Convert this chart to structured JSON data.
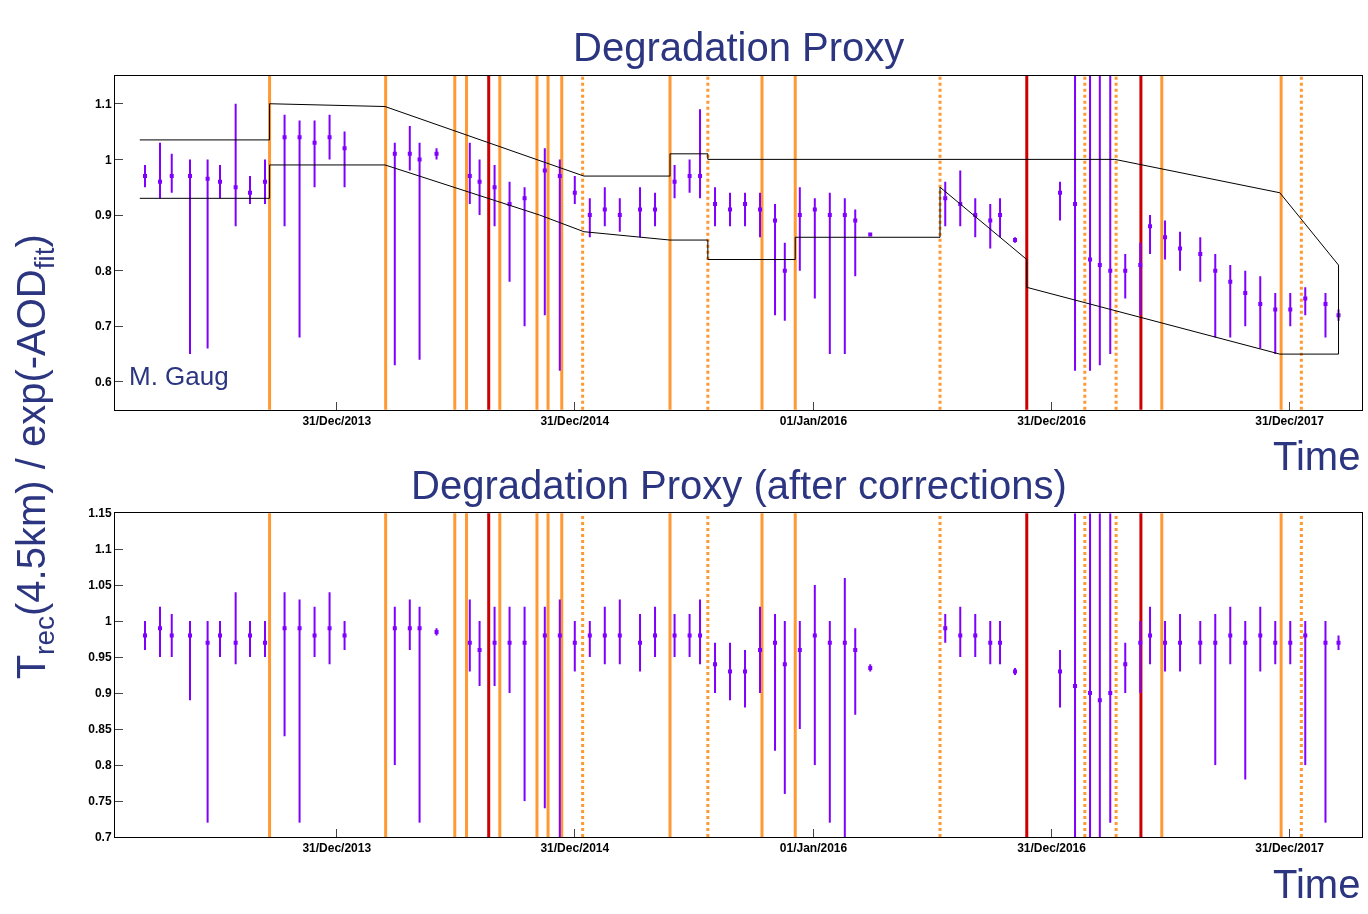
{
  "chart_data": [
    {
      "type": "scatter",
      "title": "Degradation Proxy",
      "xlabel": "Time",
      "ylabel": "T$_{rec}$(4.5km) / exp(-AOD$_{fit}$)",
      "annotations": [
        "M. Gaug"
      ],
      "grid": false,
      "marker": "square",
      "xlim": [
        "2013-01-25",
        "2018-04-21"
      ],
      "xticks": [
        {
          "value": "2013-12-31",
          "label": "31/Dec/2013"
        },
        {
          "value": "2014-12-31",
          "label": "31/Dec/2014"
        },
        {
          "value": "2016-01-01",
          "label": "01/Jan/2016"
        },
        {
          "value": "2016-12-31",
          "label": "31/Dec/2016"
        },
        {
          "value": "2017-12-31",
          "label": "31/Dec/2017"
        }
      ],
      "ylim": [
        0.55,
        1.15
      ],
      "yticks": [
        0.6,
        0.7,
        0.8,
        0.9,
        1,
        1.1
      ],
      "series": [
        {
          "color": "#7f00ff",
          "x": [
            "2013-03-12",
            "2013-04-04",
            "2013-04-22",
            "2013-05-20",
            "2013-06-16",
            "2013-07-05",
            "2013-07-29",
            "2013-08-20",
            "2013-09-12",
            "2013-10-12",
            "2013-11-04",
            "2013-11-27",
            "2013-12-20",
            "2014-01-12",
            "2014-03-30",
            "2014-04-22",
            "2014-05-07",
            "2014-06-02",
            "2014-07-23",
            "2014-08-07",
            "2014-08-30",
            "2014-09-22",
            "2014-10-15",
            "2014-11-15",
            "2014-12-08",
            "2014-12-31",
            "2015-01-23",
            "2015-02-15",
            "2015-03-10",
            "2015-04-10",
            "2015-05-03",
            "2015-06-02",
            "2015-06-25",
            "2015-07-11",
            "2015-08-03",
            "2015-08-26",
            "2015-09-18",
            "2015-10-11",
            "2015-11-03",
            "2015-11-18",
            "2015-12-11",
            "2016-01-03",
            "2016-01-26",
            "2016-02-18",
            "2016-03-05",
            "2016-03-28",
            "2016-07-21",
            "2016-08-13",
            "2016-09-05",
            "2016-09-28",
            "2016-10-13",
            "2016-11-05",
            "2017-01-13",
            "2017-02-05",
            "2017-02-28",
            "2017-03-15",
            "2017-03-31",
            "2017-04-23",
            "2017-05-16",
            "2017-05-31",
            "2017-06-23",
            "2017-07-16",
            "2017-08-16",
            "2017-09-08",
            "2017-10-01",
            "2017-10-24",
            "2017-11-16",
            "2017-12-09",
            "2018-01-01",
            "2018-01-24",
            "2018-02-24",
            "2018-03-16"
          ],
          "values": [
            0.97,
            0.96,
            0.97,
            0.97,
            0.965,
            0.96,
            0.95,
            0.94,
            0.96,
            1.04,
            1.04,
            1.03,
            1.04,
            1.02,
            1.01,
            1.01,
            1.0,
            1.01,
            0.97,
            0.96,
            0.95,
            0.92,
            0.93,
            0.98,
            0.97,
            0.94,
            0.9,
            0.91,
            0.9,
            0.91,
            0.91,
            0.96,
            0.97,
            0.97,
            0.92,
            0.91,
            0.92,
            0.91,
            0.89,
            0.8,
            0.9,
            0.91,
            0.9,
            0.9,
            0.89,
            0.865,
            0.93,
            0.92,
            0.9,
            0.89,
            0.9,
            0.855,
            0.94,
            0.92,
            0.82,
            0.81,
            0.8,
            0.8,
            0.81,
            0.88,
            0.86,
            0.84,
            0.83,
            0.8,
            0.78,
            0.76,
            0.74,
            0.73,
            0.73,
            0.75,
            0.74,
            0.72
          ],
          "errors": [
            [
              0.95,
              0.99
            ],
            [
              0.93,
              1.03
            ],
            [
              0.94,
              1.01
            ],
            [
              0.65,
              1.0
            ],
            [
              0.66,
              1.0
            ],
            [
              0.93,
              0.99
            ],
            [
              0.88,
              1.1
            ],
            [
              0.92,
              0.97
            ],
            [
              0.92,
              1.0
            ],
            [
              0.88,
              1.08
            ],
            [
              0.68,
              1.07
            ],
            [
              0.95,
              1.07
            ],
            [
              1.0,
              1.08
            ],
            [
              0.95,
              1.05
            ],
            [
              0.63,
              1.03
            ],
            [
              0.98,
              1.06
            ],
            [
              0.64,
              1.03
            ],
            [
              1.0,
              1.02
            ],
            [
              0.92,
              1.03
            ],
            [
              0.9,
              1.0
            ],
            [
              0.88,
              0.99
            ],
            [
              0.78,
              0.96
            ],
            [
              0.7,
              0.95
            ],
            [
              0.72,
              1.02
            ],
            [
              0.62,
              1.0
            ],
            [
              0.92,
              0.97
            ],
            [
              0.86,
              0.93
            ],
            [
              0.88,
              0.95
            ],
            [
              0.87,
              0.93
            ],
            [
              0.86,
              0.95
            ],
            [
              0.88,
              0.94
            ],
            [
              0.93,
              0.99
            ],
            [
              0.94,
              1.0
            ],
            [
              0.93,
              1.09
            ],
            [
              0.88,
              0.95
            ],
            [
              0.88,
              0.94
            ],
            [
              0.88,
              0.94
            ],
            [
              0.86,
              0.94
            ],
            [
              0.72,
              0.92
            ],
            [
              0.71,
              0.85
            ],
            [
              0.8,
              0.95
            ],
            [
              0.75,
              0.93
            ],
            [
              0.65,
              0.94
            ],
            [
              0.65,
              0.93
            ],
            [
              0.79,
              0.91
            ],
            null,
            [
              0.88,
              0.96
            ],
            [
              0.88,
              0.98
            ],
            [
              0.86,
              0.93
            ],
            [
              0.84,
              0.92
            ],
            [
              0.86,
              0.93
            ],
            [
              0.85,
              0.86
            ],
            [
              0.89,
              0.96
            ],
            [
              0.62,
              1.15
            ],
            [
              0.62,
              1.15
            ],
            [
              0.63,
              1.15
            ],
            [
              0.65,
              1.15
            ],
            [
              0.75,
              0.83
            ],
            [
              0.72,
              0.85
            ],
            [
              0.83,
              0.9
            ],
            [
              0.82,
              0.89
            ],
            [
              0.8,
              0.87
            ],
            [
              0.78,
              0.86
            ],
            [
              0.68,
              0.83
            ],
            [
              0.68,
              0.81
            ],
            [
              0.7,
              0.8
            ],
            [
              0.66,
              0.79
            ],
            [
              0.65,
              0.76
            ],
            [
              0.7,
              0.76
            ],
            [
              0.72,
              0.77
            ],
            [
              0.68,
              0.76
            ],
            [
              0.71,
              0.73
            ]
          ]
        },
        {
          "type": "line",
          "color": "#000000",
          "marker": "none",
          "x": [
            "2013-03-04",
            "2013-09-19",
            "2013-09-19",
            "2014-03-15",
            "2015-01-14",
            "2015-05-26",
            "2015-05-26",
            "2015-07-23",
            "2015-07-23",
            "2017-04-07",
            "2017-12-16",
            "2018-03-16"
          ],
          "values": [
            1.035,
            1.035,
            1.1,
            1.095,
            0.97,
            0.97,
            1.01,
            1.01,
            1.0,
            1.0,
            0.94,
            0.81
          ]
        },
        {
          "type": "line",
          "color": "#000000",
          "marker": "none",
          "x": [
            "2013-03-04",
            "2013-09-19",
            "2013-09-19",
            "2014-03-15",
            "2014-11-07",
            "2015-01-14",
            "2015-05-26",
            "2015-07-23",
            "2015-07-23",
            "2015-12-04",
            "2015-12-04",
            "2016-07-13",
            "2016-07-13",
            "2016-11-23",
            "2016-11-23",
            "2017-12-16",
            "2018-03-16",
            "2018-03-16"
          ],
          "values": [
            0.93,
            0.93,
            0.99,
            0.99,
            0.9,
            0.87,
            0.855,
            0.855,
            0.82,
            0.82,
            0.86,
            0.86,
            0.95,
            0.82,
            0.77,
            0.65,
            0.65,
            0.81
          ]
        }
      ],
      "ref_lines": [
        {
          "axis": "x",
          "value": "2013-09-19",
          "color": "#ff9933",
          "line_style": "solid"
        },
        {
          "axis": "x",
          "value": "2014-03-16",
          "color": "#ff9933",
          "line_style": "solid"
        },
        {
          "axis": "x",
          "value": "2014-06-30",
          "color": "#ff9933",
          "line_style": "solid"
        },
        {
          "axis": "x",
          "value": "2014-07-18",
          "color": "#ff9933",
          "line_style": "solid"
        },
        {
          "axis": "x",
          "value": "2014-08-21",
          "color": "#cc0000",
          "line_style": "solid"
        },
        {
          "axis": "x",
          "value": "2014-09-07",
          "color": "#ff9933",
          "line_style": "solid"
        },
        {
          "axis": "x",
          "value": "2014-11-03",
          "color": "#ff9933",
          "line_style": "solid"
        },
        {
          "axis": "x",
          "value": "2014-11-20",
          "color": "#ff9933",
          "line_style": "solid"
        },
        {
          "axis": "x",
          "value": "2014-12-11",
          "color": "#ff9933",
          "line_style": "solid"
        },
        {
          "axis": "x",
          "value": "2015-01-12",
          "color": "#ff9933",
          "line_style": "dotted"
        },
        {
          "axis": "x",
          "value": "2015-05-26",
          "color": "#ff9933",
          "line_style": "solid"
        },
        {
          "axis": "x",
          "value": "2015-07-23",
          "color": "#ff9933",
          "line_style": "dotted"
        },
        {
          "axis": "x",
          "value": "2015-10-14",
          "color": "#ff9933",
          "line_style": "solid"
        },
        {
          "axis": "x",
          "value": "2015-12-04",
          "color": "#ff9933",
          "line_style": "solid"
        },
        {
          "axis": "x",
          "value": "2016-07-13",
          "color": "#ff9933",
          "line_style": "dotted"
        },
        {
          "axis": "x",
          "value": "2016-11-23",
          "color": "#cc0000",
          "line_style": "solid"
        },
        {
          "axis": "x",
          "value": "2017-02-20",
          "color": "#ff9933",
          "line_style": "dotted"
        },
        {
          "axis": "x",
          "value": "2017-04-09",
          "color": "#ff9933",
          "line_style": "dotted"
        },
        {
          "axis": "x",
          "value": "2017-05-17",
          "color": "#cc0000",
          "line_style": "solid"
        },
        {
          "axis": "x",
          "value": "2017-06-18",
          "color": "#ff9933",
          "line_style": "solid"
        },
        {
          "axis": "x",
          "value": "2017-12-18",
          "color": "#ff9933",
          "line_style": "solid"
        },
        {
          "axis": "x",
          "value": "2018-01-18",
          "color": "#ff9933",
          "line_style": "dotted"
        }
      ]
    },
    {
      "type": "scatter",
      "title": "Degradation Proxy (after corrections)",
      "xlabel": "Time",
      "grid": false,
      "marker": "square",
      "xlim": [
        "2013-01-25",
        "2018-04-21"
      ],
      "xticks": [
        {
          "value": "2013-12-31",
          "label": "31/Dec/2013"
        },
        {
          "value": "2014-12-31",
          "label": "31/Dec/2014"
        },
        {
          "value": "2016-01-01",
          "label": "01/Jan/2016"
        },
        {
          "value": "2016-12-31",
          "label": "31/Dec/2016"
        },
        {
          "value": "2017-12-31",
          "label": "31/Dec/2017"
        }
      ],
      "ylim": [
        0.7,
        1.15
      ],
      "yticks": [
        0.7,
        0.75,
        0.8,
        0.85,
        0.9,
        0.95,
        1,
        1.05,
        1.1,
        1.15
      ],
      "series": [
        {
          "color": "#7f00ff",
          "x": [
            "2013-03-12",
            "2013-04-04",
            "2013-04-22",
            "2013-05-20",
            "2013-06-16",
            "2013-07-05",
            "2013-07-29",
            "2013-08-20",
            "2013-09-12",
            "2013-10-12",
            "2013-11-04",
            "2013-11-27",
            "2013-12-20",
            "2014-01-12",
            "2014-03-30",
            "2014-04-22",
            "2014-05-07",
            "2014-06-02",
            "2014-07-23",
            "2014-08-07",
            "2014-08-30",
            "2014-09-22",
            "2014-10-15",
            "2014-11-15",
            "2014-12-08",
            "2014-12-31",
            "2015-01-23",
            "2015-02-15",
            "2015-03-10",
            "2015-04-10",
            "2015-05-03",
            "2015-06-02",
            "2015-06-25",
            "2015-07-11",
            "2015-08-03",
            "2015-08-26",
            "2015-09-18",
            "2015-10-11",
            "2015-11-03",
            "2015-11-18",
            "2015-12-11",
            "2016-01-03",
            "2016-01-26",
            "2016-02-18",
            "2016-03-05",
            "2016-03-28",
            "2016-07-21",
            "2016-08-13",
            "2016-09-05",
            "2016-09-28",
            "2016-10-13",
            "2016-11-05",
            "2017-01-13",
            "2017-02-05",
            "2017-02-28",
            "2017-03-15",
            "2017-03-31",
            "2017-04-23",
            "2017-05-16",
            "2017-05-31",
            "2017-06-23",
            "2017-07-16",
            "2017-08-16",
            "2017-09-08",
            "2017-10-01",
            "2017-10-24",
            "2017-11-16",
            "2017-12-09",
            "2018-01-01",
            "2018-01-24",
            "2018-02-24",
            "2018-03-16"
          ],
          "values": [
            0.98,
            0.99,
            0.98,
            0.98,
            0.97,
            0.98,
            0.97,
            0.98,
            0.97,
            0.99,
            0.99,
            0.98,
            0.99,
            0.98,
            0.99,
            0.99,
            0.99,
            0.985,
            0.97,
            0.96,
            0.97,
            0.97,
            0.97,
            0.98,
            0.98,
            0.97,
            0.98,
            0.98,
            0.98,
            0.97,
            0.98,
            0.98,
            0.98,
            0.98,
            0.94,
            0.93,
            0.93,
            0.96,
            0.97,
            0.94,
            0.96,
            0.98,
            0.97,
            0.97,
            0.96,
            0.935,
            0.99,
            0.98,
            0.98,
            0.97,
            0.97,
            0.93,
            0.93,
            0.91,
            0.9,
            0.89,
            0.9,
            0.94,
            0.97,
            0.98,
            0.97,
            0.97,
            0.97,
            0.97,
            0.98,
            0.97,
            0.98,
            0.97,
            0.97,
            0.98,
            0.97,
            0.97
          ],
          "errors": [
            [
              0.96,
              1.0
            ],
            [
              0.95,
              1.02
            ],
            [
              0.95,
              1.01
            ],
            [
              0.89,
              1.0
            ],
            [
              0.72,
              1.0
            ],
            [
              0.95,
              1.0
            ],
            [
              0.94,
              1.04
            ],
            [
              0.95,
              1.0
            ],
            [
              0.95,
              1.0
            ],
            [
              0.84,
              1.04
            ],
            [
              0.72,
              1.03
            ],
            [
              0.95,
              1.02
            ],
            [
              0.94,
              1.04
            ],
            [
              0.96,
              1.0
            ],
            [
              0.8,
              1.02
            ],
            [
              0.96,
              1.03
            ],
            [
              0.72,
              1.02
            ],
            [
              0.98,
              0.99
            ],
            [
              0.93,
              1.03
            ],
            [
              0.91,
              1.0
            ],
            [
              0.91,
              1.02
            ],
            [
              0.9,
              1.02
            ],
            [
              0.75,
              1.02
            ],
            [
              0.74,
              1.02
            ],
            [
              0.7,
              1.03
            ],
            [
              0.93,
              1.0
            ],
            [
              0.95,
              1.0
            ],
            [
              0.94,
              1.02
            ],
            [
              0.94,
              1.03
            ],
            [
              0.93,
              1.01
            ],
            [
              0.95,
              1.02
            ],
            [
              0.95,
              1.01
            ],
            [
              0.95,
              1.01
            ],
            [
              0.94,
              1.03
            ],
            [
              0.9,
              0.97
            ],
            [
              0.89,
              0.97
            ],
            [
              0.88,
              0.96
            ],
            [
              0.9,
              1.02
            ],
            [
              0.82,
              1.01
            ],
            [
              0.76,
              1.0
            ],
            [
              0.85,
              1.0
            ],
            [
              0.8,
              1.05
            ],
            [
              0.72,
              1.0
            ],
            [
              0.7,
              1.06
            ],
            [
              0.87,
              0.99
            ],
            [
              0.93,
              0.94
            ],
            [
              0.97,
              1.01
            ],
            [
              0.95,
              1.02
            ],
            [
              0.95,
              1.01
            ],
            [
              0.94,
              1.0
            ],
            [
              0.94,
              1.0
            ],
            [
              0.925,
              0.935
            ],
            [
              0.88,
              0.96
            ],
            [
              0.7,
              1.15
            ],
            [
              0.7,
              1.15
            ],
            [
              0.7,
              1.15
            ],
            [
              0.72,
              1.15
            ],
            [
              0.9,
              0.97
            ],
            [
              0.9,
              1.0
            ],
            [
              0.94,
              1.02
            ],
            [
              0.93,
              1.0
            ],
            [
              0.93,
              1.01
            ],
            [
              0.94,
              1.0
            ],
            [
              0.8,
              1.01
            ],
            [
              0.94,
              1.02
            ],
            [
              0.78,
              1.0
            ],
            [
              0.93,
              1.02
            ],
            [
              0.94,
              1.0
            ],
            [
              0.94,
              1.0
            ],
            [
              0.8,
              1.0
            ],
            [
              0.72,
              1.0
            ],
            [
              0.96,
              0.98
            ]
          ]
        }
      ],
      "ref_lines": [
        {
          "axis": "x",
          "value": "2013-09-19",
          "color": "#ff9933",
          "line_style": "solid"
        },
        {
          "axis": "x",
          "value": "2014-03-16",
          "color": "#ff9933",
          "line_style": "solid"
        },
        {
          "axis": "x",
          "value": "2014-06-30",
          "color": "#ff9933",
          "line_style": "solid"
        },
        {
          "axis": "x",
          "value": "2014-07-18",
          "color": "#ff9933",
          "line_style": "solid"
        },
        {
          "axis": "x",
          "value": "2014-08-21",
          "color": "#cc0000",
          "line_style": "solid"
        },
        {
          "axis": "x",
          "value": "2014-09-07",
          "color": "#ff9933",
          "line_style": "solid"
        },
        {
          "axis": "x",
          "value": "2014-11-03",
          "color": "#ff9933",
          "line_style": "solid"
        },
        {
          "axis": "x",
          "value": "2014-11-20",
          "color": "#ff9933",
          "line_style": "solid"
        },
        {
          "axis": "x",
          "value": "2014-12-11",
          "color": "#ff9933",
          "line_style": "solid"
        },
        {
          "axis": "x",
          "value": "2015-01-12",
          "color": "#ff9933",
          "line_style": "dotted"
        },
        {
          "axis": "x",
          "value": "2015-05-26",
          "color": "#ff9933",
          "line_style": "solid"
        },
        {
          "axis": "x",
          "value": "2015-07-23",
          "color": "#ff9933",
          "line_style": "dotted"
        },
        {
          "axis": "x",
          "value": "2015-10-14",
          "color": "#ff9933",
          "line_style": "solid"
        },
        {
          "axis": "x",
          "value": "2015-12-04",
          "color": "#ff9933",
          "line_style": "solid"
        },
        {
          "axis": "x",
          "value": "2016-07-13",
          "color": "#ff9933",
          "line_style": "dotted"
        },
        {
          "axis": "x",
          "value": "2016-11-23",
          "color": "#cc0000",
          "line_style": "solid"
        },
        {
          "axis": "x",
          "value": "2017-02-20",
          "color": "#ff9933",
          "line_style": "dotted"
        },
        {
          "axis": "x",
          "value": "2017-04-09",
          "color": "#ff9933",
          "line_style": "dotted"
        },
        {
          "axis": "x",
          "value": "2017-05-17",
          "color": "#cc0000",
          "line_style": "solid"
        },
        {
          "axis": "x",
          "value": "2017-06-18",
          "color": "#ff9933",
          "line_style": "solid"
        },
        {
          "axis": "x",
          "value": "2017-12-18",
          "color": "#ff9933",
          "line_style": "solid"
        },
        {
          "axis": "x",
          "value": "2018-01-18",
          "color": "#ff9933",
          "line_style": "dotted"
        }
      ]
    }
  ]
}
